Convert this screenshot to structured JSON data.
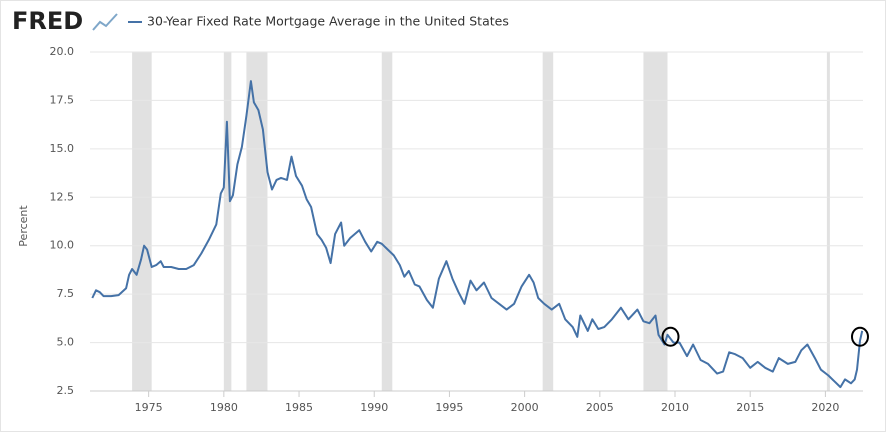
{
  "logo": "FRED",
  "chart_data": {
    "type": "line",
    "y_label": "Percent",
    "series": [
      {
        "name": "30-Year Fixed Rate Mortgage Average in the United States",
        "color": "#4572a7",
        "x": [
          1971.25,
          1971.5,
          1971.75,
          1972,
          1972.5,
          1973,
          1973.5,
          1973.7,
          1973.9,
          1974.2,
          1974.5,
          1974.7,
          1974.9,
          1975.2,
          1975.5,
          1975.8,
          1976,
          1976.5,
          1977,
          1977.5,
          1978,
          1978.5,
          1979,
          1979.5,
          1979.8,
          1980,
          1980.2,
          1980.4,
          1980.6,
          1980.9,
          1981.2,
          1981.5,
          1981.8,
          1982,
          1982.3,
          1982.6,
          1982.9,
          1983.2,
          1983.5,
          1983.8,
          1984.2,
          1984.5,
          1984.8,
          1985.2,
          1985.5,
          1985.8,
          1986.2,
          1986.5,
          1986.8,
          1987.1,
          1987.4,
          1987.8,
          1988,
          1988.4,
          1988.7,
          1989,
          1989.4,
          1989.8,
          1990.2,
          1990.5,
          1990.9,
          1991.3,
          1991.7,
          1992,
          1992.3,
          1992.7,
          1993,
          1993.5,
          1993.9,
          1994.3,
          1994.8,
          1995.2,
          1995.6,
          1996,
          1996.4,
          1996.8,
          1997.3,
          1997.8,
          1998.3,
          1998.8,
          1999.3,
          1999.8,
          2000.3,
          2000.6,
          2000.9,
          2001.3,
          2001.8,
          2002.3,
          2002.7,
          2003.2,
          2003.5,
          2003.7,
          2004.2,
          2004.5,
          2004.9,
          2005.3,
          2005.8,
          2006.4,
          2006.9,
          2007.5,
          2007.9,
          2008.3,
          2008.7,
          2008.9,
          2009.3,
          2009.5,
          2009.9,
          2010.3,
          2010.8,
          2011.2,
          2011.7,
          2012.2,
          2012.8,
          2013.2,
          2013.6,
          2014,
          2014.5,
          2015,
          2015.5,
          2016,
          2016.5,
          2016.9,
          2017.5,
          2018,
          2018.4,
          2018.8,
          2019.3,
          2019.7,
          2020.2,
          2020.6,
          2021,
          2021.3,
          2021.7,
          2021.95,
          2022.1,
          2022.3,
          2022.45
        ],
        "values": [
          7.3,
          7.7,
          7.6,
          7.4,
          7.4,
          7.45,
          7.8,
          8.5,
          8.8,
          8.5,
          9.3,
          10.0,
          9.8,
          8.9,
          9.0,
          9.2,
          8.9,
          8.9,
          8.8,
          8.8,
          9.0,
          9.6,
          10.3,
          11.1,
          12.7,
          13.0,
          16.4,
          12.3,
          12.6,
          14.2,
          15.1,
          16.7,
          18.5,
          17.4,
          17.0,
          16.0,
          13.8,
          12.9,
          13.4,
          13.5,
          13.4,
          14.6,
          13.6,
          13.1,
          12.4,
          12.0,
          10.6,
          10.3,
          9.9,
          9.1,
          10.6,
          11.2,
          10.0,
          10.4,
          10.6,
          10.8,
          10.2,
          9.7,
          10.2,
          10.1,
          9.8,
          9.5,
          9.0,
          8.4,
          8.7,
          8.0,
          7.9,
          7.2,
          6.8,
          8.3,
          9.2,
          8.3,
          7.6,
          7.0,
          8.2,
          7.7,
          8.1,
          7.3,
          7.0,
          6.7,
          7.0,
          7.9,
          8.5,
          8.1,
          7.3,
          7.0,
          6.7,
          7.0,
          6.2,
          5.8,
          5.3,
          6.4,
          5.6,
          6.2,
          5.7,
          5.8,
          6.2,
          6.8,
          6.2,
          6.7,
          6.1,
          6.0,
          6.4,
          5.4,
          4.9,
          5.4,
          5.0,
          5.0,
          4.3,
          4.9,
          4.1,
          3.9,
          3.4,
          3.5,
          4.5,
          4.4,
          4.2,
          3.7,
          4.0,
          3.7,
          3.5,
          4.2,
          3.9,
          4.0,
          4.6,
          4.9,
          4.2,
          3.6,
          3.3,
          3.0,
          2.7,
          3.1,
          2.9,
          3.1,
          3.6,
          5.1,
          5.6
        ]
      }
    ],
    "recessions": [
      [
        1973.9,
        1975.2
      ],
      [
        1980.0,
        1980.5
      ],
      [
        1981.5,
        1982.9
      ],
      [
        1990.5,
        1991.2
      ],
      [
        2001.2,
        2001.9
      ],
      [
        2007.9,
        2009.5
      ],
      [
        2020.1,
        2020.3
      ]
    ],
    "highlights": [
      {
        "x": 2009.7,
        "y": 5.3
      },
      {
        "x": 2022.3,
        "y": 5.3
      }
    ],
    "xlim": [
      1971.1,
      2022.5
    ],
    "xticks": [
      1975,
      1980,
      1985,
      1990,
      1995,
      2000,
      2005,
      2010,
      2015,
      2020
    ],
    "ylim": [
      2.5,
      20
    ],
    "yticks": [
      2.5,
      {
        "value": 5,
        "label": "5.0"
      },
      7.5,
      {
        "value": 10,
        "label": "10.0"
      },
      12.5,
      {
        "value": 15,
        "label": "15.0"
      },
      17.5,
      {
        "value": 20,
        "label": "20.0"
      }
    ],
    "grid": true
  }
}
